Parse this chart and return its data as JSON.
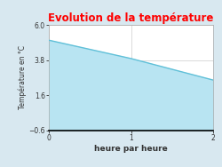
{
  "title": "Evolution de la température",
  "title_color": "#ff0000",
  "xlabel": "heure par heure",
  "ylabel": "Température en °C",
  "x_data": [
    0,
    1,
    2
  ],
  "y_data": [
    5.05,
    3.9,
    2.55
  ],
  "fill_color": "#b8e4f2",
  "line_color": "#60c0d8",
  "line_width": 1.0,
  "ylim": [
    -0.6,
    6.0
  ],
  "xlim": [
    0,
    2
  ],
  "yticks": [
    -0.6,
    1.6,
    3.8,
    6.0
  ],
  "xticks": [
    0,
    1,
    2
  ],
  "background_color": "#d8e8f0",
  "plot_bg_color": "#ffffff",
  "grid_color": "#cccccc",
  "fill_baseline": -0.6,
  "title_fontsize": 8.5,
  "tick_fontsize": 5.5,
  "xlabel_fontsize": 6.5,
  "ylabel_fontsize": 5.5
}
